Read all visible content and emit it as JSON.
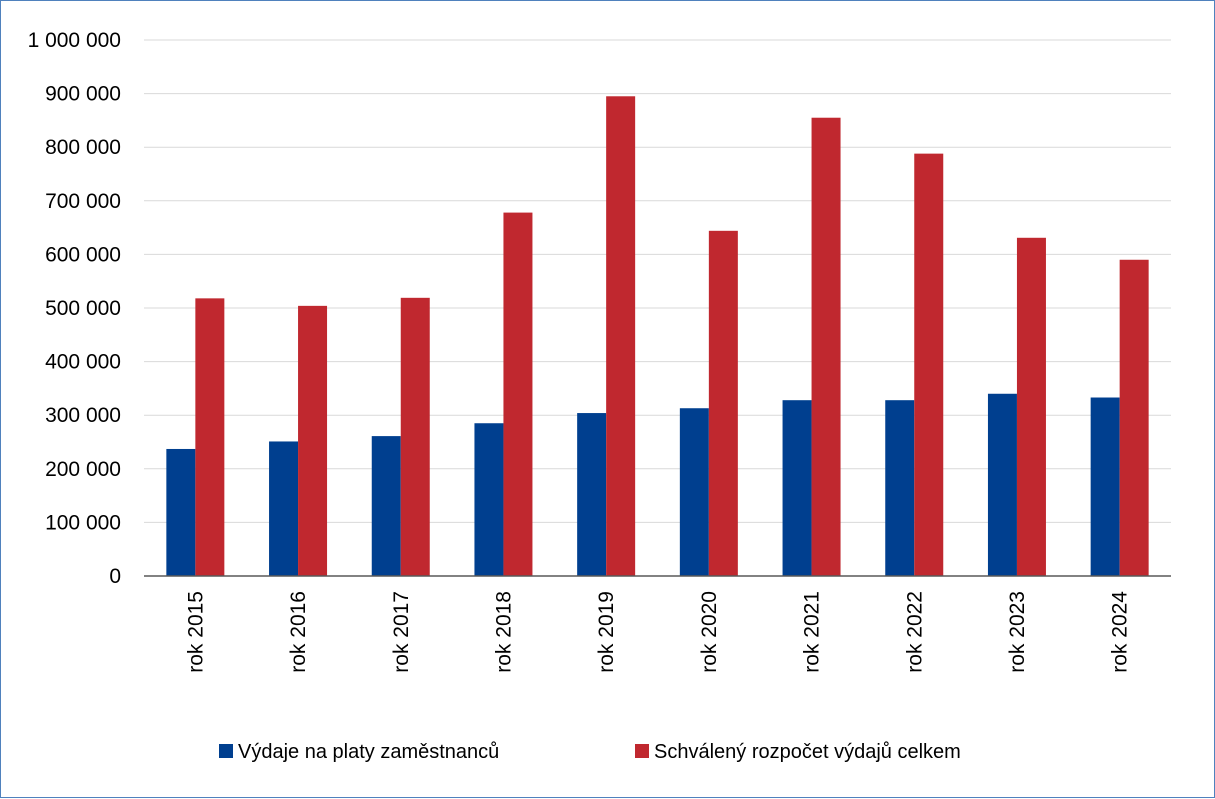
{
  "chart_data": {
    "type": "bar",
    "categories": [
      "rok 2015",
      "rok 2016",
      "rok 2017",
      "rok 2018",
      "rok 2019",
      "rok 2020",
      "rok 2021",
      "rok 2022",
      "rok 2023",
      "rok 2024"
    ],
    "series": [
      {
        "name": "Výdaje na platy zaměstnanců",
        "color": "#003f8f",
        "values": [
          237000,
          251000,
          261000,
          285000,
          304000,
          313000,
          328000,
          328000,
          340000,
          333000
        ]
      },
      {
        "name": "Schválený rozpočet výdajů celkem",
        "color": "#c0282f",
        "values": [
          518000,
          504000,
          519000,
          678000,
          895000,
          644000,
          855000,
          788000,
          631000,
          590000
        ]
      }
    ],
    "y_ticks": [
      "0",
      "100 000",
      "200 000",
      "300 000",
      "400 000",
      "500 000",
      "600 000",
      "700 000",
      "800 000",
      "900 000",
      "1 000 000"
    ],
    "ylim": [
      0,
      1000000
    ],
    "grid": true,
    "legend_position": "bottom",
    "title": "",
    "xlabel": "",
    "ylabel": ""
  }
}
